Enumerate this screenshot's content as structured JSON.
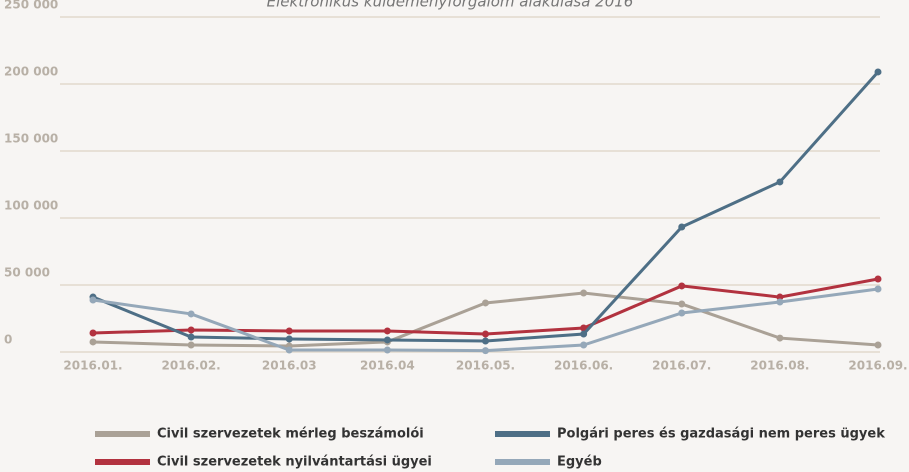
{
  "chart_data": {
    "type": "line",
    "title": "Elektronikus küldeményforgalom alakulása 2016",
    "categories": [
      "2016.01.",
      "2016.02.",
      "2016.03",
      "2016.04",
      "2016.05.",
      "2016.06.",
      "2016.07.",
      "2016.08.",
      "2016.09."
    ],
    "series": [
      {
        "name": "Civil szervezetek mérleg beszámolói",
        "color": "#aaa196",
        "values": [
          7500,
          5200,
          4500,
          7500,
          36600,
          44000,
          35800,
          10400,
          5200
        ]
      },
      {
        "name": "Civil szervezetek nyilvántartási ügyei",
        "color": "#b2323f",
        "values": [
          14200,
          16400,
          15700,
          15700,
          13400,
          17900,
          49300,
          41000,
          54500
        ]
      },
      {
        "name": "Polgári peres és gazdasági nem peres ügyek",
        "color": "#4e6f86",
        "values": [
          41000,
          11200,
          9700,
          9000,
          8200,
          13400,
          93300,
          126900,
          209000
        ]
      },
      {
        "name": "Egyéb",
        "color": "#95a8b9",
        "values": [
          38800,
          28400,
          1500,
          1500,
          1000,
          5200,
          29100,
          37300,
          47000
        ]
      }
    ],
    "ylim": [
      0,
      250000
    ],
    "yticks": [
      {
        "value": 0,
        "label": "0"
      },
      {
        "value": 50000,
        "label": "50 000"
      },
      {
        "value": 100000,
        "label": "100 000"
      },
      {
        "value": 150000,
        "label": "150 000"
      },
      {
        "value": 200000,
        "label": "200 000"
      },
      {
        "value": 250000,
        "label": "250 000"
      }
    ],
    "grid": true
  }
}
